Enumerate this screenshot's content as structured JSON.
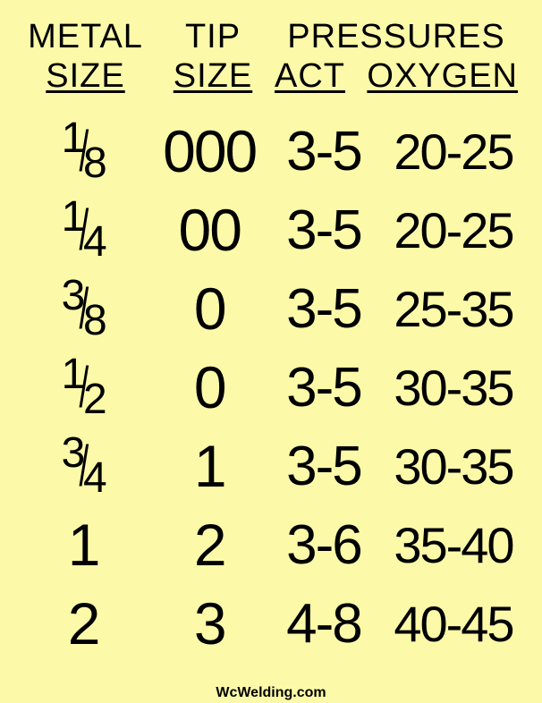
{
  "background_color": "#fcfaa9",
  "text_color": "#000000",
  "header": {
    "metal_line1": "METAL",
    "metal_line2": "SIZE",
    "tip_line1": "TIP",
    "tip_line2": "SIZE",
    "pressures": "PRESSURES",
    "act": "ACT",
    "oxygen": "OXYGEN"
  },
  "rows": [
    {
      "metal_num": "1",
      "metal_den": "8",
      "is_fraction": true,
      "tip": "000",
      "act": "3-5",
      "oxy": "20-25"
    },
    {
      "metal_num": "1",
      "metal_den": "4",
      "is_fraction": true,
      "tip": "00",
      "act": "3-5",
      "oxy": "20-25"
    },
    {
      "metal_num": "3",
      "metal_den": "8",
      "is_fraction": true,
      "tip": "0",
      "act": "3-5",
      "oxy": "25-35"
    },
    {
      "metal_num": "1",
      "metal_den": "2",
      "is_fraction": true,
      "tip": "0",
      "act": "3-5",
      "oxy": "30-35"
    },
    {
      "metal_num": "3",
      "metal_den": "4",
      "is_fraction": true,
      "tip": "1",
      "act": "3-5",
      "oxy": "30-35"
    },
    {
      "metal_whole": "1",
      "is_fraction": false,
      "tip": "2",
      "act": "3-6",
      "oxy": "35-40"
    },
    {
      "metal_whole": "2",
      "is_fraction": false,
      "tip": "3",
      "act": "4-8",
      "oxy": "40-45"
    }
  ],
  "footer": "WcWelding.com",
  "table_style": {
    "type": "table",
    "header_fontsize": 38,
    "data_fontsize_large": 66,
    "data_fontsize_oxy": 56,
    "fraction_fontsize": 48,
    "font_family": "Arial"
  }
}
